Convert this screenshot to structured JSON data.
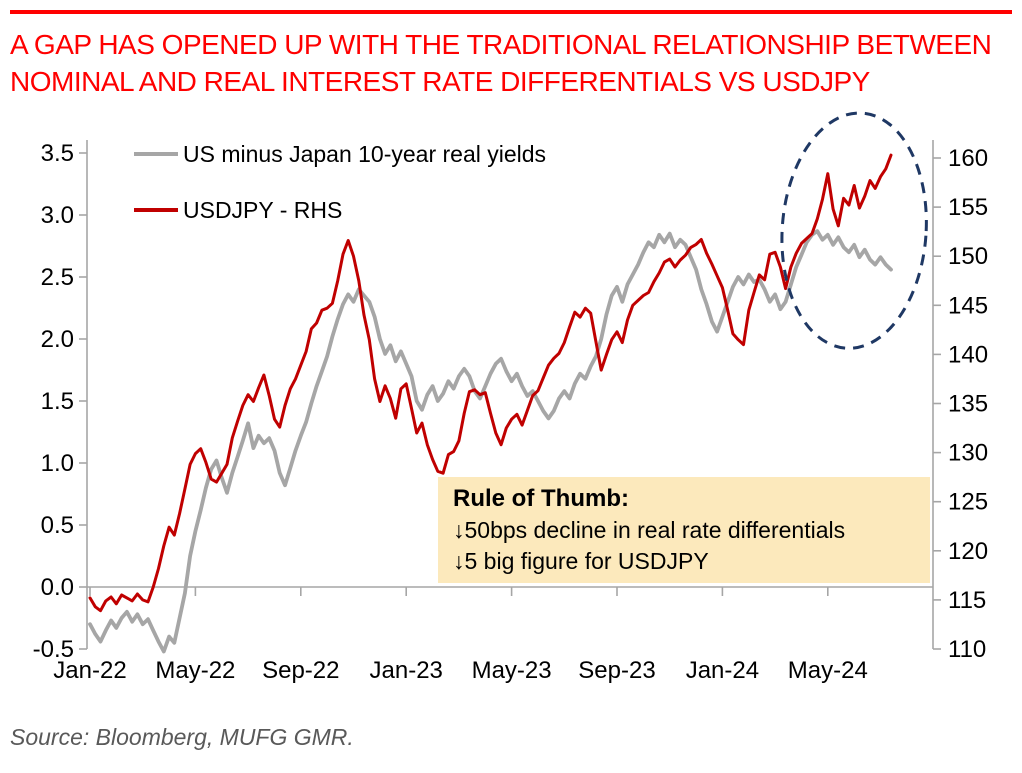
{
  "header": {
    "title_line1": "A GAP HAS OPENED UP WITH THE TRADITIONAL RELATIONSHIP BETWEEN",
    "title_line2": "NOMINAL AND REAL INTEREST RATE DIFFERENTIALS VS USDJPY"
  },
  "source": "Source: Bloomberg, MUFG GMR.",
  "colors": {
    "title_red": "#ff0000",
    "line_red": "#c00000",
    "line_gray": "#a6a6a6",
    "ellipse_navy": "#1f3864",
    "box_fill": "#fce9bc",
    "axis_line": "#a6a6a6",
    "source_gray": "#595959"
  },
  "chart_data": {
    "type": "line",
    "title": "A GAP HAS OPENED UP WITH THE TRADITIONAL RELATIONSHIP BETWEEN NOMINAL AND REAL INTEREST RATE DIFFERENTIALS VS USDJPY",
    "x_axis": {
      "unit": "months since Jan-2022",
      "range": [
        0,
        31.9
      ],
      "ticks": [
        {
          "label": "Jan-22",
          "month": 0
        },
        {
          "label": "May-22",
          "month": 4
        },
        {
          "label": "Sep-22",
          "month": 8
        },
        {
          "label": "Jan-23",
          "month": 12
        },
        {
          "label": "May-23",
          "month": 16
        },
        {
          "label": "Sep-23",
          "month": 20
        },
        {
          "label": "Jan-24",
          "month": 24
        },
        {
          "label": "May-24",
          "month": 28
        }
      ]
    },
    "left_axis": {
      "min": -0.5,
      "max": 3.5,
      "ticks": [
        {
          "label": "3.5",
          "value": 3.5
        },
        {
          "label": "3.0",
          "value": 3.0
        },
        {
          "label": "2.5",
          "value": 2.5
        },
        {
          "label": "2.0",
          "value": 2.0
        },
        {
          "label": "1.5",
          "value": 1.5
        },
        {
          "label": "1.0",
          "value": 1.0
        },
        {
          "label": "0.5",
          "value": 0.5
        },
        {
          "label": "0.0",
          "value": 0.0
        },
        {
          "label": "-0.5",
          "value": -0.5
        }
      ]
    },
    "right_axis": {
      "min": 110,
      "max": 160,
      "ticks": [
        {
          "label": "160",
          "value": 160
        },
        {
          "label": "155",
          "value": 155
        },
        {
          "label": "150",
          "value": 150
        },
        {
          "label": "145",
          "value": 145
        },
        {
          "label": "140",
          "value": 140
        },
        {
          "label": "135",
          "value": 135
        },
        {
          "label": "130",
          "value": 130
        },
        {
          "label": "125",
          "value": 125
        },
        {
          "label": "120",
          "value": 120
        },
        {
          "label": "115",
          "value": 115
        },
        {
          "label": "110",
          "value": 110
        }
      ]
    },
    "series": [
      {
        "name": "US minus Japan 10-year real yields",
        "axis": "left",
        "color": "#a6a6a6",
        "stroke_width": 3.8,
        "start_month": 0,
        "step_months": 0.2,
        "values": [
          -0.3,
          -0.38,
          -0.44,
          -0.35,
          -0.27,
          -0.33,
          -0.25,
          -0.2,
          -0.28,
          -0.22,
          -0.3,
          -0.26,
          -0.35,
          -0.44,
          -0.52,
          -0.4,
          -0.45,
          -0.25,
          -0.05,
          0.25,
          0.45,
          0.62,
          0.8,
          0.95,
          1.02,
          0.88,
          0.76,
          0.92,
          1.05,
          1.18,
          1.32,
          1.12,
          1.22,
          1.16,
          1.2,
          1.1,
          0.92,
          0.82,
          0.96,
          1.1,
          1.22,
          1.33,
          1.48,
          1.62,
          1.74,
          1.86,
          2.02,
          2.16,
          2.28,
          2.36,
          2.3,
          2.4,
          2.35,
          2.3,
          2.18,
          2.0,
          1.88,
          1.95,
          1.82,
          1.9,
          1.8,
          1.7,
          1.5,
          1.43,
          1.55,
          1.62,
          1.5,
          1.56,
          1.66,
          1.6,
          1.7,
          1.76,
          1.7,
          1.58,
          1.52,
          1.62,
          1.72,
          1.8,
          1.84,
          1.74,
          1.66,
          1.72,
          1.62,
          1.54,
          1.58,
          1.5,
          1.42,
          1.36,
          1.42,
          1.52,
          1.58,
          1.52,
          1.64,
          1.72,
          1.68,
          1.78,
          1.86,
          2.0,
          2.2,
          2.35,
          2.42,
          2.3,
          2.44,
          2.52,
          2.6,
          2.7,
          2.78,
          2.74,
          2.84,
          2.78,
          2.85,
          2.74,
          2.8,
          2.76,
          2.66,
          2.56,
          2.4,
          2.28,
          2.14,
          2.06,
          2.18,
          2.3,
          2.42,
          2.5,
          2.44,
          2.52,
          2.46,
          2.48,
          2.4,
          2.3,
          2.36,
          2.24,
          2.3,
          2.44,
          2.58,
          2.68,
          2.78,
          2.84,
          2.87,
          2.8,
          2.84,
          2.76,
          2.82,
          2.74,
          2.7,
          2.76,
          2.66,
          2.72,
          2.64,
          2.6,
          2.66,
          2.6,
          2.56
        ]
      },
      {
        "name": "USDJPY - RHS",
        "axis": "right",
        "color": "#c00000",
        "stroke_width": 3,
        "start_month": 0,
        "step_months": 0.2,
        "values": [
          115.2,
          114.3,
          113.9,
          114.9,
          115.3,
          114.6,
          115.5,
          115.2,
          114.9,
          115.6,
          115.0,
          114.8,
          116.3,
          118.2,
          120.5,
          122.4,
          121.6,
          123.8,
          126.3,
          128.8,
          129.9,
          130.4,
          129.0,
          127.3,
          127.0,
          127.9,
          128.8,
          131.5,
          133.2,
          134.8,
          135.9,
          135.2,
          136.6,
          137.9,
          135.8,
          133.4,
          132.6,
          134.8,
          136.5,
          137.5,
          138.9,
          140.3,
          142.6,
          143.2,
          144.5,
          144.7,
          145.2,
          147.5,
          150.2,
          151.6,
          150.0,
          147.5,
          144.0,
          141.5,
          137.5,
          135.2,
          136.8,
          135.5,
          133.5,
          136.5,
          137.0,
          134.5,
          132.0,
          133.0,
          130.8,
          129.3,
          128.1,
          127.9,
          129.8,
          130.1,
          131.2,
          134.0,
          136.2,
          136.4,
          135.9,
          136.1,
          134.0,
          132.0,
          130.8,
          132.5,
          133.4,
          133.9,
          132.8,
          134.3,
          135.8,
          136.3,
          137.6,
          138.9,
          139.6,
          140.1,
          141.2,
          142.8,
          144.3,
          143.8,
          144.7,
          144.2,
          141.3,
          138.4,
          140.0,
          141.5,
          142.3,
          141.2,
          143.5,
          145.0,
          145.5,
          146.0,
          146.3,
          147.4,
          148.3,
          149.4,
          149.7,
          148.9,
          149.6,
          150.1,
          150.9,
          151.2,
          151.7,
          150.3,
          149.2,
          148.0,
          146.8,
          144.5,
          142.1,
          141.5,
          141.0,
          144.5,
          146.3,
          148.1,
          147.6,
          150.2,
          150.4,
          148.9,
          146.7,
          148.9,
          150.3,
          151.3,
          151.8,
          152.3,
          153.8,
          155.8,
          158.4,
          154.8,
          153.1,
          155.9,
          155.2,
          157.2,
          154.9,
          156.1,
          157.7,
          156.9,
          158.1,
          158.9,
          160.3
        ]
      }
    ],
    "annotations": {
      "rule_box": {
        "title": "Rule of Thumb:",
        "lines": [
          "↓50bps decline in real rate differentials",
          "↓5 big figure for USDJPY"
        ]
      },
      "ellipse": {
        "center_month": 29.0,
        "center_value_right": 152.6,
        "radius_months": 2.73,
        "radius_value_right": 12.0,
        "color": "#1f3864",
        "rotation_deg": 4
      }
    },
    "legend_position": "top-left",
    "grid": "x-axis crosses at left value 0.0"
  }
}
